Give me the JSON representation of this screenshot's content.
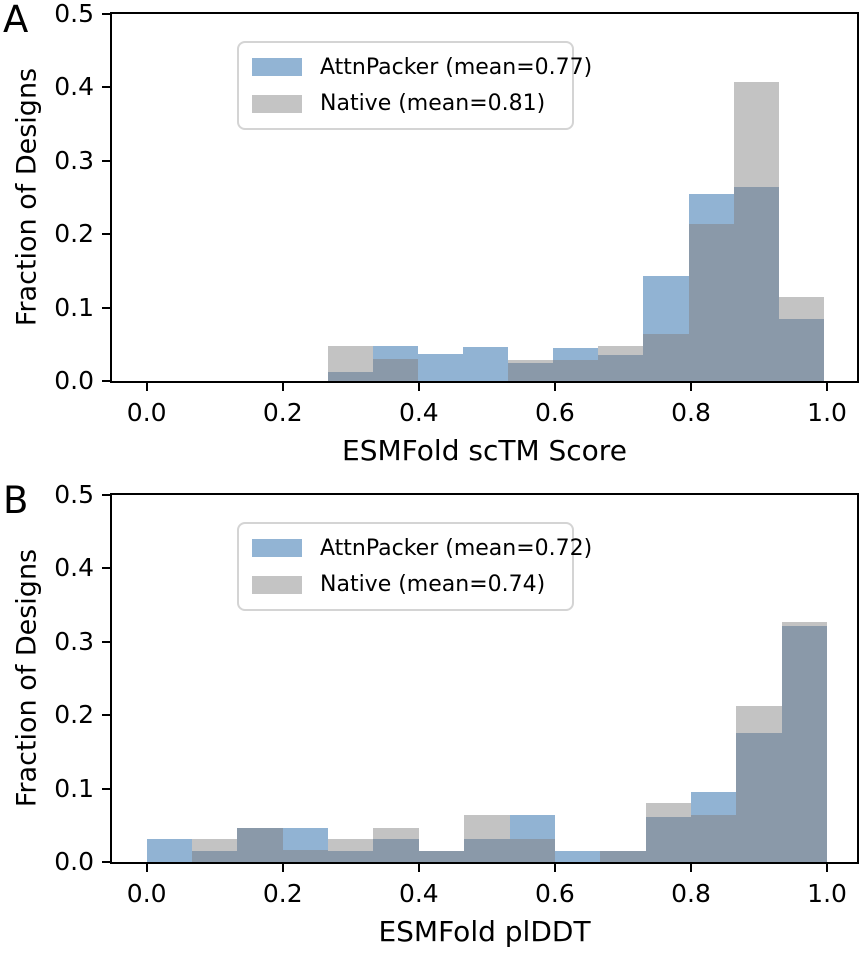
{
  "figure": {
    "background": "#ffffff",
    "axis_color": "#000000",
    "colors": {
      "attnpacker": "#91B3D3",
      "native": "#C3C3C3",
      "overlap": "#8A99A9",
      "legend_swatch_attnpacker": "#92B4D4",
      "legend_swatch_native": "#C4C4C4"
    }
  },
  "chart_data": [
    {
      "type": "histogram",
      "panel": "A",
      "xlabel": "ESMFold  scTM Score",
      "ylabel": "Fraction of Designs",
      "xlim": [
        -0.051,
        1.044
      ],
      "ylim": [
        0,
        0.5
      ],
      "xticks": [
        0.0,
        0.2,
        0.4,
        0.6,
        0.8,
        1.0
      ],
      "yticks": [
        0.0,
        0.1,
        0.2,
        0.3,
        0.4,
        0.5
      ],
      "bin_start": 0.266,
      "bin_width": 0.0663,
      "legend_position": "upper left",
      "grid": false,
      "series": [
        {
          "name": "AttnPacker (mean=0.77)",
          "color_key": "attnpacker",
          "swatch_key": "legend_swatch_attnpacker",
          "values": [
            0.012,
            0.048,
            0.037,
            0.047,
            0.024,
            0.045,
            0.036,
            0.143,
            0.255,
            0.265,
            0.084
          ]
        },
        {
          "name": "Native (mean=0.81)",
          "color_key": "native",
          "swatch_key": "legend_swatch_native",
          "values": [
            0.048,
            0.03,
            0.0,
            0.0,
            0.028,
            0.028,
            0.048,
            0.064,
            0.214,
            0.408,
            0.114
          ]
        }
      ]
    },
    {
      "type": "histogram",
      "panel": "B",
      "xlabel": "ESMFold plDDT",
      "ylabel": "Fraction of Designs",
      "xlim": [
        -0.051,
        1.044
      ],
      "ylim": [
        0,
        0.5
      ],
      "xticks": [
        0.0,
        0.2,
        0.4,
        0.6,
        0.8,
        1.0
      ],
      "yticks": [
        0.0,
        0.1,
        0.2,
        0.3,
        0.4,
        0.5
      ],
      "bin_start": 0.0,
      "bin_width": 0.06667,
      "legend_position": "upper left",
      "grid": false,
      "series": [
        {
          "name": "AttnPacker (mean=0.72)",
          "color_key": "attnpacker",
          "swatch_key": "legend_swatch_attnpacker",
          "values": [
            0.031,
            0.015,
            0.047,
            0.047,
            0.015,
            0.031,
            0.015,
            0.031,
            0.064,
            0.015,
            0.015,
            0.062,
            0.096,
            0.176,
            0.322
          ]
        },
        {
          "name": "Native (mean=0.74)",
          "color_key": "native",
          "swatch_key": "legend_swatch_native",
          "values": [
            0.0,
            0.031,
            0.047,
            0.016,
            0.031,
            0.047,
            0.015,
            0.064,
            0.031,
            0.0,
            0.015,
            0.08,
            0.064,
            0.213,
            0.327
          ]
        }
      ]
    }
  ]
}
